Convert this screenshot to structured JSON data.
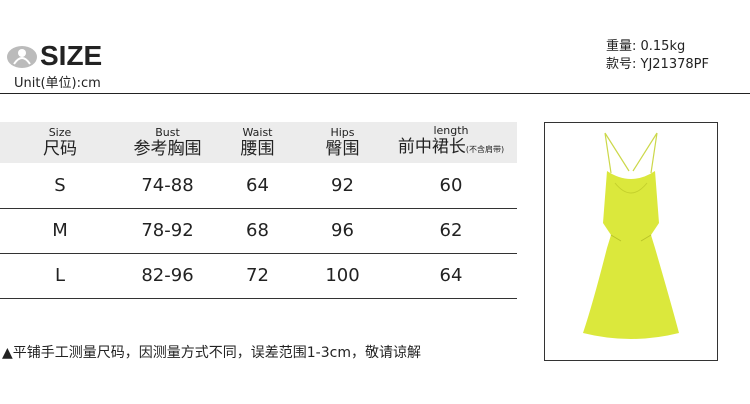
{
  "header": {
    "title": "SIZE",
    "unit": "Unit(单位):cm",
    "weight": "重量: 0.15kg",
    "style_no": "款号: YJ21378PF"
  },
  "table": {
    "columns": [
      {
        "en": "Size",
        "cn": "尺码",
        "note": ""
      },
      {
        "en": "Bust",
        "cn": "参考胸围",
        "note": ""
      },
      {
        "en": "Waist",
        "cn": "腰围",
        "note": ""
      },
      {
        "en": "Hips",
        "cn": "臀围",
        "note": ""
      },
      {
        "en": "length",
        "cn": "前中裙长",
        "note": "(不含肩带)"
      }
    ],
    "rows": [
      [
        "S",
        "74-88",
        "64",
        "92",
        "60"
      ],
      [
        "M",
        "78-92",
        "68",
        "96",
        "62"
      ],
      [
        "L",
        "82-96",
        "72",
        "100",
        "64"
      ]
    ]
  },
  "note": "平铺手工测量尺码，因测量方式不同，误差范围1-3cm，敬请谅解",
  "colors": {
    "dress": "#dbe83c",
    "header_bg": "#ececec"
  }
}
